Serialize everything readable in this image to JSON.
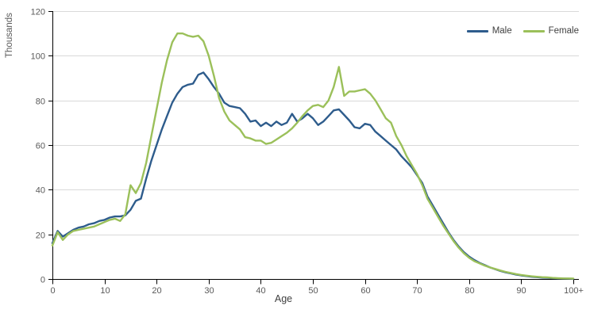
{
  "chart_data": {
    "type": "line",
    "title": "",
    "xlabel": "Age",
    "ylabel": "Thousands",
    "x_description": "single year of age from 0 to 100+",
    "x_tick_labels": [
      "0",
      "10",
      "20",
      "30",
      "40",
      "50",
      "60",
      "70",
      "80",
      "90",
      "100+"
    ],
    "y_ticks": [
      0,
      20,
      40,
      60,
      80,
      100,
      120
    ],
    "ylim": [
      0,
      120
    ],
    "xlim_ages": [
      0,
      100
    ],
    "grid": "horizontal",
    "legend_position": "top-right",
    "style": {
      "axis_color": "#000000",
      "gridline_color": "#d9d9d9",
      "tick_label_color": "#595959"
    },
    "series": [
      {
        "name": "Male",
        "color": "#2e5c8c",
        "values": [
          16,
          21.5,
          19,
          20.5,
          22,
          23,
          23.5,
          24.5,
          25,
          26,
          26.5,
          27.5,
          28,
          28,
          28.5,
          31,
          35,
          36,
          45,
          53,
          60,
          67,
          73,
          79,
          83,
          86,
          87,
          87.5,
          91.5,
          92.5,
          89.5,
          86,
          83,
          79,
          77.5,
          77,
          76.5,
          74,
          70.5,
          71,
          68.5,
          70,
          68.5,
          70.5,
          69,
          70,
          74,
          70.5,
          72,
          74,
          72,
          69,
          70.5,
          73,
          75.5,
          76,
          73.5,
          71,
          68,
          67.5,
          69.5,
          69,
          66,
          64,
          62,
          60,
          58,
          55,
          52.5,
          50,
          46.5,
          43,
          37,
          33,
          29,
          25,
          21,
          17.5,
          14.5,
          12,
          10,
          8.5,
          7.2,
          6.2,
          5.2,
          4.4,
          3.6,
          3,
          2.5,
          2,
          1.6,
          1.3,
          1,
          0.8,
          0.6,
          0.5,
          0.4,
          0.3,
          0.2,
          0.15,
          0.1
        ]
      },
      {
        "name": "Female",
        "color": "#9bc05a",
        "values": [
          15,
          21,
          17.5,
          20,
          21.5,
          22,
          22.5,
          23,
          23.5,
          24.5,
          25.5,
          26.5,
          27,
          26,
          29,
          42,
          38.5,
          43,
          52,
          64,
          76,
          88,
          98,
          106,
          110,
          110,
          109,
          108.5,
          109,
          106.5,
          100,
          91,
          81,
          75,
          71,
          69,
          67,
          63.5,
          63,
          62,
          62,
          60.5,
          61,
          62.5,
          64,
          65.5,
          67.5,
          70,
          73,
          75.5,
          77.5,
          78,
          77,
          80,
          86,
          95,
          82,
          84,
          84,
          84.5,
          85,
          83,
          80,
          76,
          72,
          70,
          64,
          60,
          55,
          51,
          47,
          42,
          36,
          32,
          28,
          24,
          20.5,
          17,
          14,
          11.5,
          9.5,
          8,
          7,
          6,
          5.2,
          4.5,
          3.8,
          3.2,
          2.7,
          2.2,
          1.8,
          1.5,
          1.2,
          1,
          0.8,
          0.7,
          0.5,
          0.4,
          0.3,
          0.25,
          0.2
        ]
      }
    ]
  }
}
